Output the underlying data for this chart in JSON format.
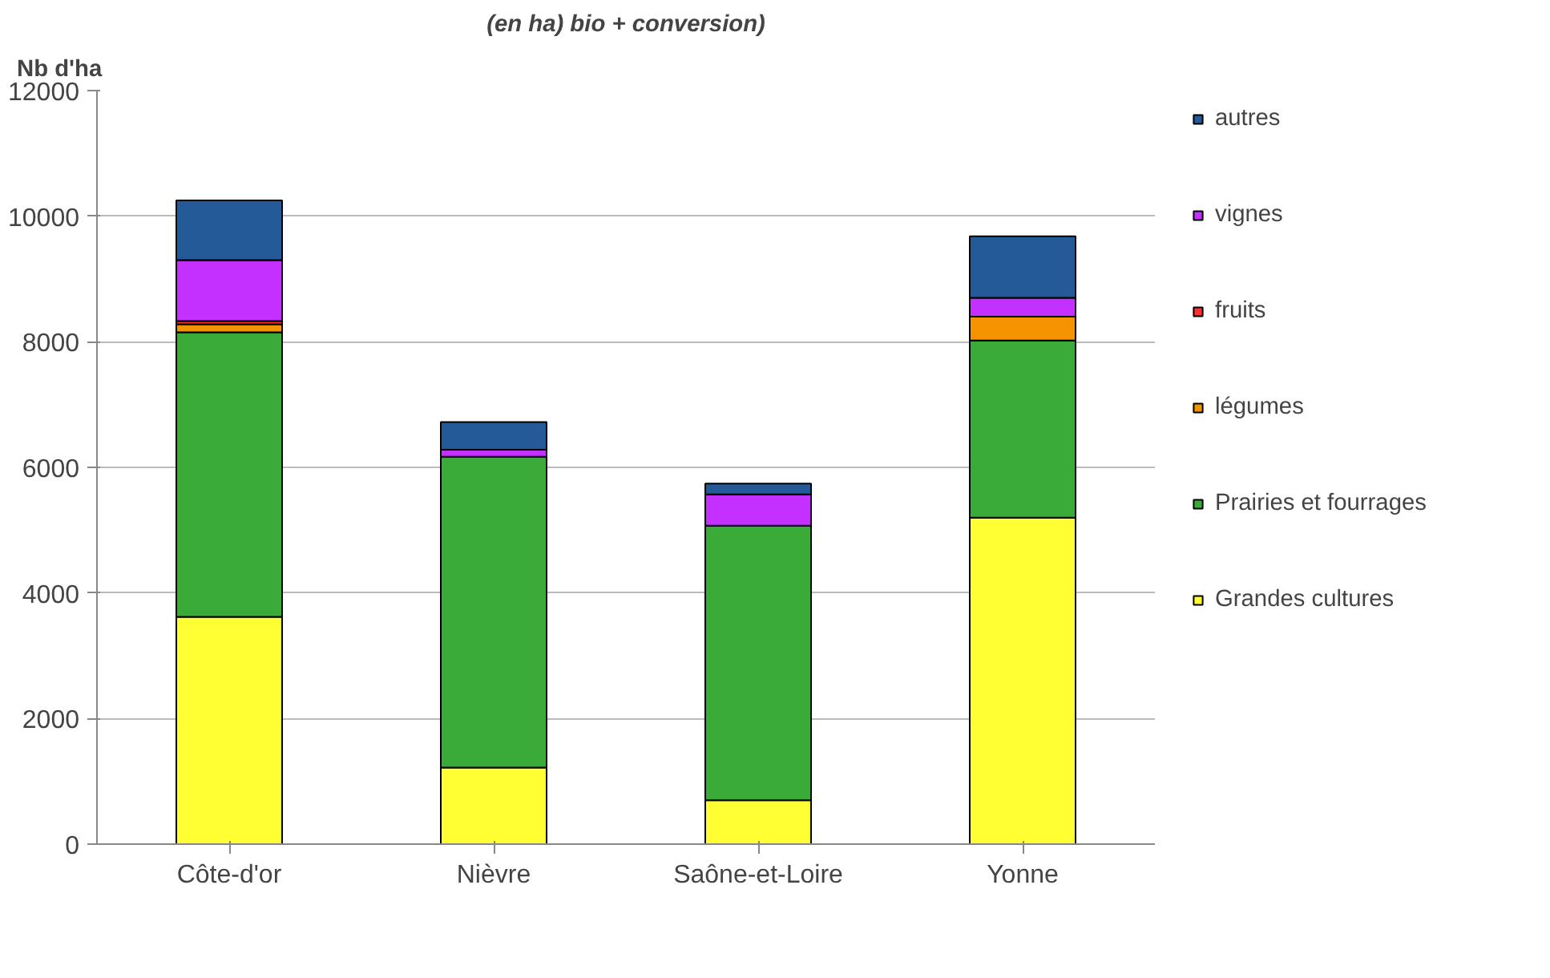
{
  "chart_data": {
    "type": "bar",
    "stacked": true,
    "title": "(en ha) bio + conversion)",
    "ylabel": "Nb d'ha",
    "categories": [
      "Côte-d'or",
      "Nièvre",
      "Saône-et-Loire",
      "Yonne"
    ],
    "series": [
      {
        "name": "Grandes cultures",
        "color": "#ffff33",
        "values": [
          3620,
          1220,
          700,
          5200
        ]
      },
      {
        "name": "Prairies et fourrages",
        "color": "#3aaa38",
        "values": [
          4530,
          4950,
          4370,
          2820
        ]
      },
      {
        "name": "légumes",
        "color": "#f59200",
        "values": [
          130,
          null,
          null,
          380
        ]
      },
      {
        "name": "fruits",
        "color": "#ff3030",
        "values": [
          50,
          null,
          null,
          null
        ]
      },
      {
        "name": "vignes",
        "color": "#c330ff",
        "values": [
          970,
          110,
          500,
          300
        ]
      },
      {
        "name": "autres",
        "color": "#255a99",
        "values": [
          950,
          440,
          170,
          980
        ]
      }
    ],
    "ylim": [
      0,
      12000
    ],
    "yticks": [
      0,
      2000,
      4000,
      6000,
      8000,
      10000,
      12000
    ],
    "grid": "y",
    "legend": "right"
  }
}
